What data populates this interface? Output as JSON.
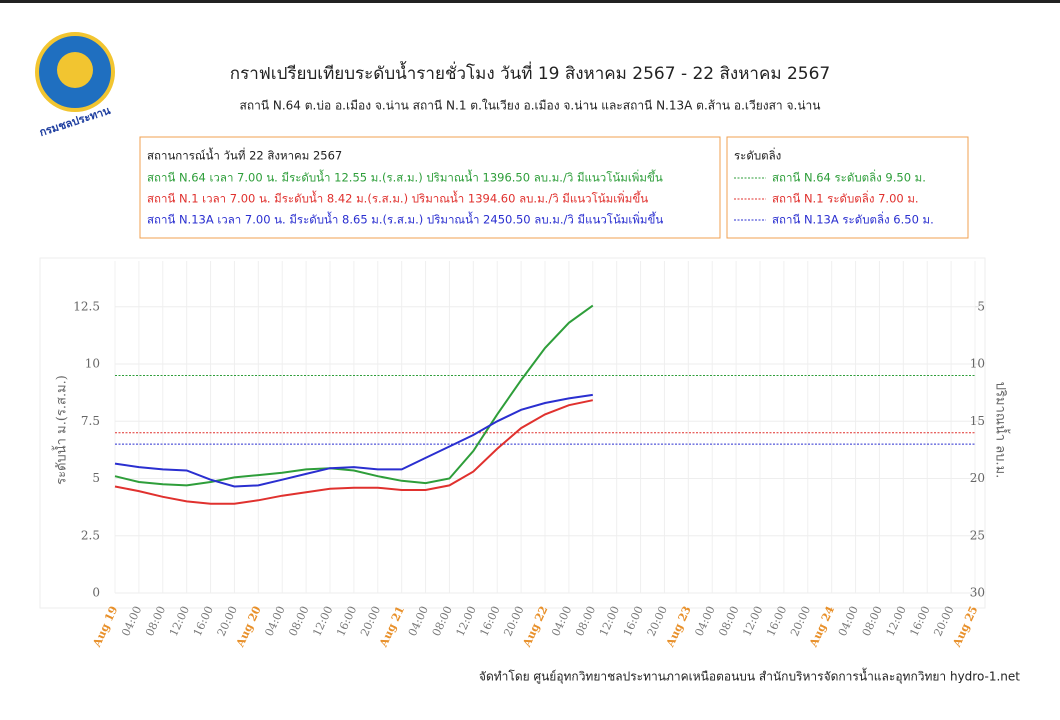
{
  "logo_text": "กรมชลประทาน",
  "footer": "จัดทำโดย ศูนย์อุทกวิทยาชลประทานภาคเหนือตอนบน สำนักบริหารจัดการน้ำและอุทกวิทยา hydro-1.net",
  "chart_data": {
    "type": "line",
    "title": "กราฟเปรียบเทียบระดับน้ำรายชั่วโมง  วันที่ 19 สิงหาคม 2567 - 22 สิงหาคม 2567",
    "subtitle": "สถานี  N.64 ต.บ่อ อ.เมือง จ.น่าน สถานี  N.1 ต.ในเวียง อ.เมือง จ.น่าน และสถานี  N.13A ต.ส้าน อ.เวียงสา จ.น่าน",
    "situation": {
      "header": "สถานการณ์น้ำ  วันที่  22 สิงหาคม 2567",
      "lines": [
        {
          "text": "สถานี N.64 เวลา  7.00 น. มีระดับน้ำ 12.55 ม.(ร.ส.ม.) ปริมาณน้ำ  1396.50 ลบ.ม./วิ มีแนวโน้มเพิ่มขึ้น",
          "color": "#2e9e3a"
        },
        {
          "text": "สถานี N.1 เวลา  7.00 น. มีระดับน้ำ 8.42 ม.(ร.ส.ม.) ปริมาณน้ำ  1394.60 ลบ.ม./วิ มีแนวโน้มเพิ่มขึ้น",
          "color": "#e0312e"
        },
        {
          "text": "สถานี N.13A เวลา  7.00 น. มีระดับน้ำ 8.65 ม.(ร.ส.ม.) ปริมาณน้ำ  2450.50 ลบ.ม./วิ มีแนวโน้มเพิ่มขึ้น",
          "color": "#2a2fd0"
        }
      ]
    },
    "bank_legend": {
      "header": "ระดับตลิ่ง",
      "lines": [
        "สถานี N.64 ระดับตลิ่ง  9.50 ม.",
        "สถานี N.1 ระดับตลิ่ง  7.00 ม.",
        "สถานี N.13A ระดับตลิ่ง  6.50 ม."
      ]
    },
    "reference_lines": [
      {
        "value": 9.5,
        "color": "#2e9e3a"
      },
      {
        "value": 7.0,
        "color": "#e0312e"
      },
      {
        "value": 6.5,
        "color": "#2a2fd0"
      }
    ],
    "ylabel": "ระดับน้ำ ม.(ร.ส.ม.)",
    "y2label": "ปริมาณน้ำ ลบ.ม.",
    "categories": [
      "Aug 19",
      "04:00",
      "08:00",
      "12:00",
      "16:00",
      "20:00",
      "Aug 20",
      "04:00",
      "08:00",
      "12:00",
      "16:00",
      "20:00",
      "Aug 21",
      "04:00",
      "08:00",
      "12:00",
      "16:00",
      "20:00",
      "Aug 22",
      "04:00",
      "08:00",
      "12:00",
      "16:00",
      "20:00",
      "Aug 23",
      "04:00",
      "08:00",
      "12:00",
      "16:00",
      "20:00",
      "Aug 24",
      "04:00",
      "08:00",
      "12:00",
      "16:00",
      "20:00",
      "Aug 25"
    ],
    "series": [
      {
        "name": "N.64",
        "color": "#2e9e3a",
        "values": [
          5.1,
          4.85,
          4.75,
          4.7,
          4.85,
          5.05,
          5.15,
          5.25,
          5.4,
          5.45,
          5.35,
          5.1,
          4.9,
          4.8,
          5.0,
          6.2,
          7.8,
          9.3,
          10.7,
          11.8,
          12.55,
          null,
          null,
          null,
          null,
          null,
          null,
          null,
          null,
          null,
          null,
          null,
          null,
          null,
          null,
          null,
          null
        ]
      },
      {
        "name": "N.1",
        "color": "#e0312e",
        "values": [
          4.65,
          4.45,
          4.2,
          4.0,
          3.9,
          3.9,
          4.05,
          4.25,
          4.4,
          4.55,
          4.6,
          4.6,
          4.5,
          4.5,
          4.7,
          5.3,
          6.3,
          7.2,
          7.8,
          8.2,
          8.42,
          null,
          null,
          null,
          null,
          null,
          null,
          null,
          null,
          null,
          null,
          null,
          null,
          null,
          null,
          null,
          null
        ]
      },
      {
        "name": "N.13A",
        "color": "#2a2fd0",
        "values": [
          5.65,
          5.5,
          5.4,
          5.35,
          4.95,
          4.65,
          4.7,
          4.95,
          5.2,
          5.45,
          5.5,
          5.4,
          5.4,
          5.9,
          6.4,
          6.9,
          7.5,
          8.0,
          8.3,
          8.5,
          8.65,
          null,
          null,
          null,
          null,
          null,
          null,
          null,
          null,
          null,
          null,
          null,
          null,
          null,
          null,
          null,
          null
        ]
      }
    ],
    "ylim": [
      0,
      14.5
    ],
    "yticks": [
      0,
      2.5,
      5,
      7.5,
      10,
      12.5
    ],
    "y2lim": [
      30,
      1
    ],
    "y2ticks": [
      5,
      10,
      15,
      20,
      25,
      30
    ],
    "grid": true
  }
}
